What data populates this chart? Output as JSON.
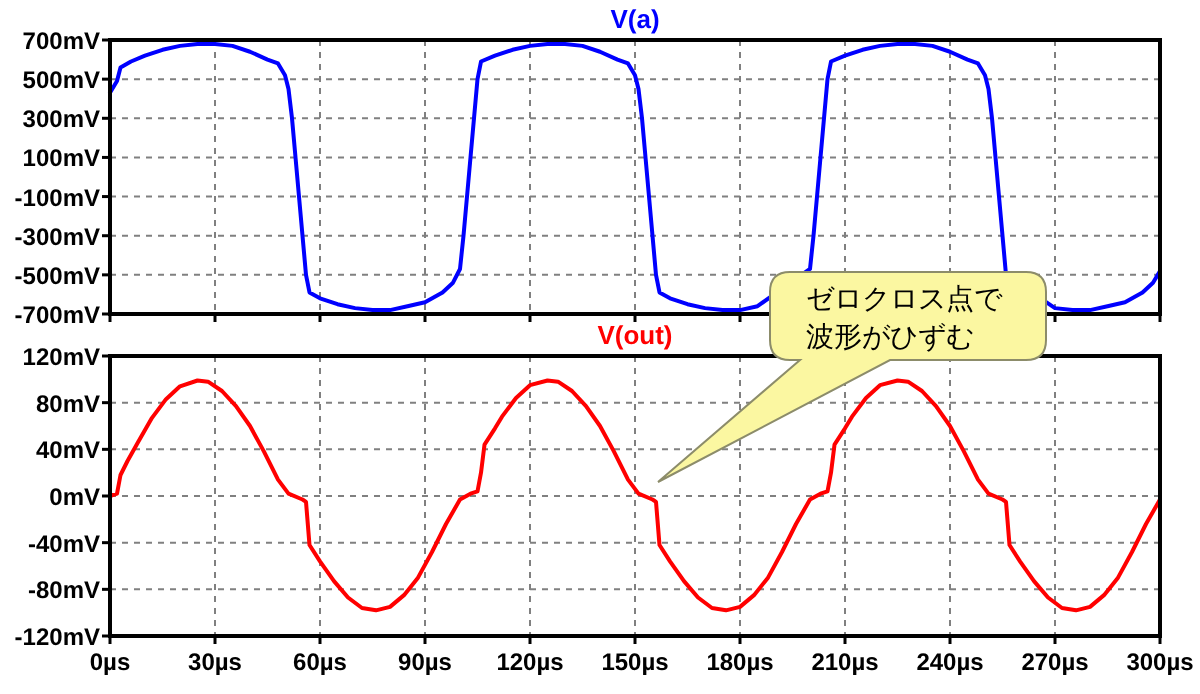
{
  "chart_data": [
    {
      "type": "line",
      "tick_labels": "y",
      "grid": true,
      "marker": "none",
      "line_style": "solid",
      "xlim": [
        0,
        300
      ],
      "ylim": [
        -700,
        700
      ],
      "xticks": [
        {
          "value": 0,
          "label": null
        },
        {
          "value": 30,
          "label": null
        },
        {
          "value": 60,
          "label": null
        },
        {
          "value": 90,
          "label": null
        },
        {
          "value": 120,
          "label": null
        },
        {
          "value": 150,
          "label": null
        },
        {
          "value": 180,
          "label": null
        },
        {
          "value": 210,
          "label": null
        },
        {
          "value": 240,
          "label": null
        },
        {
          "value": 270,
          "label": null
        },
        {
          "value": 300,
          "label": null
        }
      ],
      "yticks": [
        {
          "value": -700,
          "label": "-700mV"
        },
        {
          "value": -500,
          "label": "-500mV"
        },
        {
          "value": -300,
          "label": "-300mV"
        },
        {
          "value": -100,
          "label": "-100mV"
        },
        {
          "value": 100,
          "label": "100mV"
        },
        {
          "value": 300,
          "label": "300mV"
        },
        {
          "value": 500,
          "label": "500mV"
        },
        {
          "value": 700,
          "label": "700mV"
        }
      ],
      "series": [
        {
          "name": "V(a)",
          "color": "#0000ff",
          "x": [
            0,
            2,
            3,
            6,
            10,
            15,
            20,
            25,
            30,
            35,
            40,
            45,
            48,
            50,
            51,
            52,
            53,
            54,
            55,
            56,
            57,
            60,
            65,
            70,
            75,
            80,
            85,
            90,
            95,
            98,
            100,
            101,
            102,
            103,
            104,
            105,
            106,
            110,
            115,
            120,
            125,
            130,
            135,
            140,
            145,
            148,
            150,
            151,
            152,
            153,
            154,
            155,
            156,
            157,
            160,
            165,
            170,
            175,
            180,
            185,
            200,
            201,
            202,
            203,
            204,
            205,
            206,
            210,
            215,
            220,
            225,
            230,
            235,
            240,
            245,
            248,
            250,
            251,
            252,
            253,
            254,
            255,
            256,
            270,
            275,
            280,
            285,
            290,
            295,
            298,
            300
          ],
          "values": [
            430,
            490,
            560,
            590,
            620,
            650,
            670,
            680,
            680,
            670,
            640,
            600,
            580,
            520,
            450,
            300,
            100,
            -100,
            -300,
            -500,
            -590,
            -620,
            -650,
            -670,
            -680,
            -680,
            -660,
            -640,
            -590,
            -540,
            -470,
            -300,
            -100,
            100,
            300,
            500,
            590,
            620,
            650,
            670,
            680,
            680,
            670,
            640,
            600,
            580,
            520,
            450,
            300,
            100,
            -100,
            -300,
            -500,
            -590,
            -620,
            -650,
            -670,
            -680,
            -680,
            -660,
            -470,
            -300,
            -100,
            100,
            300,
            500,
            590,
            620,
            650,
            670,
            680,
            680,
            670,
            640,
            600,
            580,
            520,
            450,
            300,
            100,
            -100,
            -300,
            -500,
            -670,
            -680,
            -680,
            -660,
            -640,
            -590,
            -540,
            -480
          ]
        }
      ]
    },
    {
      "type": "line",
      "grid": true,
      "marker": "none",
      "line_style": "solid",
      "xlim": [
        0,
        300
      ],
      "ylim": [
        -120,
        120
      ],
      "xticks": [
        {
          "value": 0,
          "label": "0µs"
        },
        {
          "value": 30,
          "label": "30µs"
        },
        {
          "value": 60,
          "label": "60µs"
        },
        {
          "value": 90,
          "label": "90µs"
        },
        {
          "value": 120,
          "label": "120µs"
        },
        {
          "value": 150,
          "label": "150µs"
        },
        {
          "value": 180,
          "label": "180µs"
        },
        {
          "value": 210,
          "label": "210µs"
        },
        {
          "value": 240,
          "label": "240µs"
        },
        {
          "value": 270,
          "label": "270µs"
        },
        {
          "value": 300,
          "label": "300µs"
        }
      ],
      "yticks": [
        {
          "value": -120,
          "label": "-120mV"
        },
        {
          "value": -80,
          "label": "-80mV"
        },
        {
          "value": -40,
          "label": "-40mV"
        },
        {
          "value": 0,
          "label": "0mV"
        },
        {
          "value": 40,
          "label": "40mV"
        },
        {
          "value": 80,
          "label": "80mV"
        },
        {
          "value": 120,
          "label": "120mV"
        }
      ],
      "annotations": [
        "ゼロクロス点で波形がひずむ"
      ],
      "series": [
        {
          "name": "V(out)",
          "color": "#ff0000",
          "x": [
            0,
            2,
            3,
            5,
            8,
            12,
            16,
            20,
            25,
            28,
            32,
            36,
            40,
            44,
            48,
            51,
            55,
            56,
            57,
            60,
            64,
            68,
            72,
            76,
            80,
            84,
            88,
            92,
            96,
            100,
            103,
            105,
            106,
            107,
            110,
            112,
            116,
            120,
            125,
            128,
            132,
            136,
            140,
            144,
            148,
            151,
            155,
            156,
            157,
            160,
            164,
            168,
            172,
            176,
            180,
            184,
            188,
            192,
            196,
            200,
            203,
            205,
            206,
            207,
            210,
            212,
            216,
            220,
            225,
            228,
            232,
            236,
            240,
            244,
            248,
            251,
            255,
            256,
            257,
            260,
            264,
            268,
            272,
            276,
            280,
            284,
            288,
            292,
            296,
            300
          ],
          "values": [
            0,
            2,
            18,
            30,
            46,
            67,
            83,
            94,
            99,
            98,
            90,
            77,
            60,
            38,
            14,
            2,
            -3,
            -5,
            -42,
            -56,
            -73,
            -87,
            -96,
            -98,
            -95,
            -85,
            -70,
            -48,
            -24,
            -3,
            2,
            4,
            20,
            44,
            58,
            68,
            84,
            95,
            99,
            98,
            90,
            77,
            60,
            38,
            14,
            2,
            -3,
            -5,
            -42,
            -56,
            -73,
            -87,
            -96,
            -98,
            -95,
            -85,
            -70,
            -48,
            -24,
            -3,
            2,
            4,
            20,
            44,
            58,
            68,
            84,
            95,
            99,
            98,
            90,
            77,
            60,
            38,
            14,
            2,
            -3,
            -5,
            -42,
            -56,
            -73,
            -87,
            -96,
            -98,
            -95,
            -85,
            -70,
            -48,
            -24,
            -3
          ]
        }
      ]
    }
  ]
}
